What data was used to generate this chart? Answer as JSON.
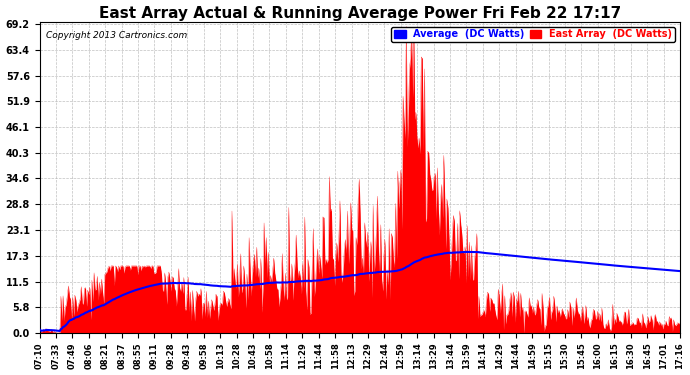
{
  "title": "East Array Actual & Running Average Power Fri Feb 22 17:17",
  "copyright": "Copyright 2013 Cartronics.com",
  "legend_avg": "Average  (DC Watts)",
  "legend_east": "East Array  (DC Watts)",
  "yticks": [
    0.0,
    5.8,
    11.5,
    17.3,
    23.1,
    28.8,
    34.6,
    40.3,
    46.1,
    51.9,
    57.6,
    63.4,
    69.2
  ],
  "ymax": 69.2,
  "ymin": 0.0,
  "bg_color": "#ffffff",
  "plot_bg_color": "#ffffff",
  "grid_color": "#b0b0b0",
  "bar_color": "#ff0000",
  "avg_line_color": "#0000ff",
  "title_fontsize": 11,
  "xtick_labels": [
    "07:10",
    "07:33",
    "07:49",
    "08:06",
    "08:21",
    "08:37",
    "08:55",
    "09:11",
    "09:28",
    "09:43",
    "09:58",
    "10:13",
    "10:28",
    "10:43",
    "10:58",
    "11:14",
    "11:29",
    "11:44",
    "11:58",
    "12:13",
    "12:29",
    "12:44",
    "12:59",
    "13:14",
    "13:29",
    "13:44",
    "13:59",
    "14:14",
    "14:29",
    "14:44",
    "14:59",
    "15:15",
    "15:30",
    "15:45",
    "16:00",
    "16:15",
    "16:30",
    "16:45",
    "17:01",
    "17:16"
  ],
  "n_points": 600
}
